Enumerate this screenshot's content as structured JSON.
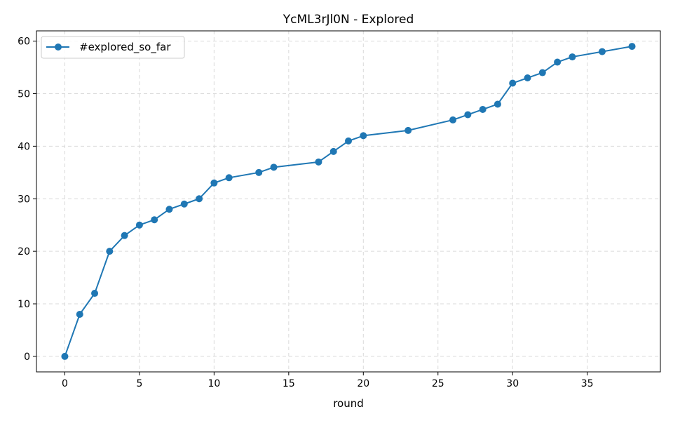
{
  "chart_data": {
    "type": "line",
    "title": "YcML3rJl0N - Explored",
    "xlabel": "round",
    "ylabel": "",
    "xlim": [
      -1.9,
      39.9
    ],
    "ylim": [
      -2.95,
      61.95
    ],
    "xticks": [
      0,
      5,
      10,
      15,
      20,
      25,
      30,
      35
    ],
    "yticks": [
      0,
      10,
      20,
      30,
      40,
      50,
      60
    ],
    "grid": true,
    "legend_position": "top-left",
    "series": [
      {
        "name": "#explored_so_far",
        "color": "#1f77b4",
        "marker": "circle",
        "x": [
          0,
          1,
          2,
          3,
          4,
          5,
          6,
          7,
          8,
          9,
          10,
          11,
          13,
          14,
          17,
          18,
          19,
          20,
          23,
          26,
          27,
          28,
          29,
          30,
          31,
          32,
          33,
          34,
          36,
          38
        ],
        "y": [
          0,
          8,
          12,
          20,
          23,
          25,
          26,
          28,
          29,
          30,
          33,
          34,
          35,
          36,
          37,
          39,
          41,
          42,
          43,
          45,
          46,
          47,
          48,
          52,
          53,
          54,
          56,
          57,
          58,
          59
        ]
      }
    ]
  }
}
